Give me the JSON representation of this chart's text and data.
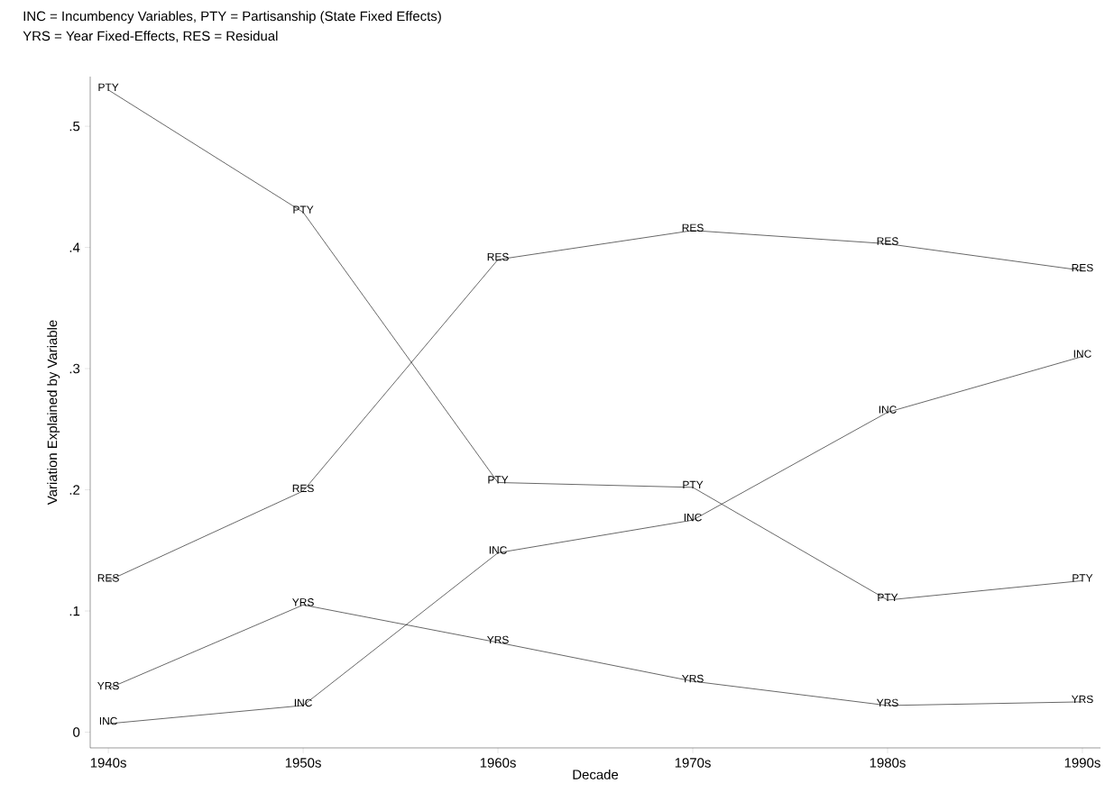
{
  "chart_data": {
    "type": "line",
    "title": "INC = Incumbency Variables,  PTY = Partisanship (State Fixed Effects)",
    "subtitle": "YRS = Year Fixed-Effects,  RES = Residual",
    "xlabel": "Decade",
    "ylabel": "Variation Explained by Variable",
    "categories": [
      "1940s",
      "1950s",
      "1960s",
      "1970s",
      "1980s",
      "1990s"
    ],
    "series": [
      {
        "name": "PTY",
        "color": "#000000",
        "values": [
          0.53,
          0.429,
          0.206,
          0.202,
          0.109,
          0.125
        ]
      },
      {
        "name": "RES",
        "color": "#000000",
        "values": [
          0.125,
          0.199,
          0.39,
          0.414,
          0.403,
          0.381
        ]
      },
      {
        "name": "INC",
        "color": "#000000",
        "values": [
          0.007,
          0.022,
          0.148,
          0.175,
          0.264,
          0.31
        ]
      },
      {
        "name": "YRS",
        "color": "#000000",
        "values": [
          0.036,
          0.105,
          0.074,
          0.042,
          0.022,
          0.025
        ]
      }
    ],
    "ylim": [
      -0.013,
      0.541
    ],
    "yticks": [
      0,
      {
        "value": 0.1,
        "label": ".1"
      },
      {
        "value": 0.2,
        "label": ".2"
      },
      {
        "value": 0.3,
        "label": ".3"
      },
      {
        "value": 0.4,
        "label": ".4"
      },
      {
        "value": 0.5,
        "label": ".5"
      }
    ],
    "marker": "none",
    "line_style": "solid"
  }
}
